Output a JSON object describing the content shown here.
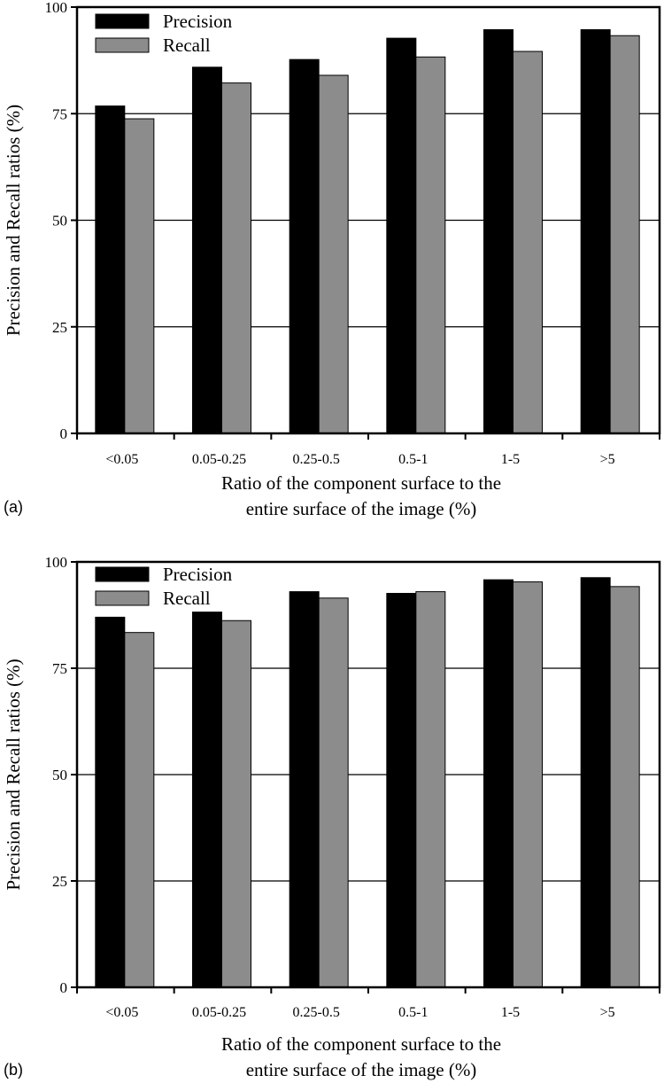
{
  "chart_data": [
    {
      "panel_label": "(a)",
      "type": "bar",
      "categories": [
        "<0.05",
        "0.05-0.25",
        "0.25-0.5",
        "0.5-1",
        "1-5",
        ">5"
      ],
      "series": [
        {
          "name": "Precision",
          "color": "#000000",
          "values": [
            76.8,
            85.9,
            87.7,
            92.7,
            94.7,
            94.7
          ]
        },
        {
          "name": "Recall",
          "color": "#8c8c8c",
          "values": [
            73.8,
            82.2,
            84.0,
            88.3,
            89.6,
            93.3
          ]
        }
      ],
      "xlabel_lines": [
        "Ratio of the component surface to the",
        "entire surface of the image (%)"
      ],
      "ylabel": "Precision and Recall ratios (%)",
      "ylim": [
        0,
        100
      ],
      "yticks": [
        "0",
        "25",
        "50",
        "75",
        "100"
      ],
      "grid": true,
      "legend": "top-left"
    },
    {
      "panel_label": "(b)",
      "type": "bar",
      "categories": [
        "<0.05",
        "0.05-0.25",
        "0.25-0.5",
        "0.5-1",
        "1-5",
        ">5"
      ],
      "series": [
        {
          "name": "Precision",
          "color": "#000000",
          "values": [
            87.0,
            88.2,
            93.0,
            92.6,
            95.8,
            96.3
          ]
        },
        {
          "name": "Recall",
          "color": "#8c8c8c",
          "values": [
            83.4,
            86.2,
            91.5,
            93.0,
            95.3,
            94.2
          ]
        }
      ],
      "xlabel_lines": [
        "Ratio of the component surface to the",
        "entire surface of the image (%)"
      ],
      "ylabel": "Precision and Recall ratios (%)",
      "ylim": [
        0,
        100
      ],
      "yticks": [
        "0",
        "25",
        "50",
        "75",
        "100"
      ],
      "grid": true,
      "legend": "top-left"
    }
  ]
}
